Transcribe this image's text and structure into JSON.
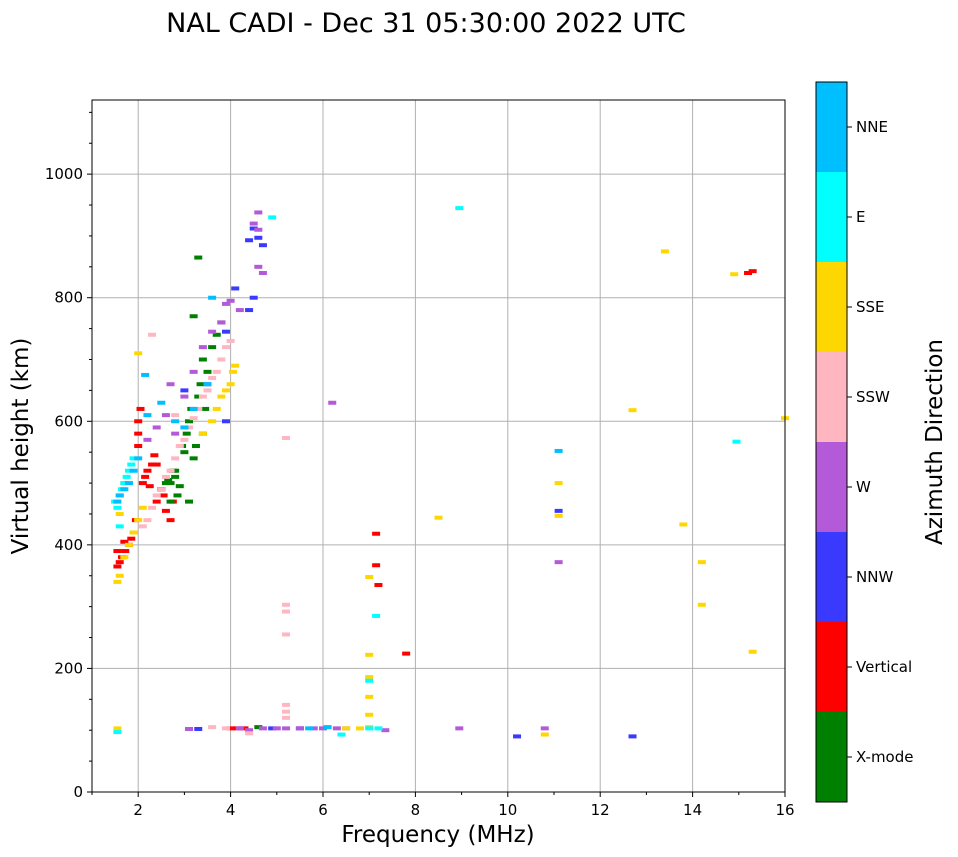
{
  "chart_data": {
    "type": "scatter",
    "title": "NAL CADI - Dec 31 05:30:00 2022 UTC",
    "xlabel": "Frequency (MHz)",
    "ylabel": "Virtual height (km)",
    "xlim": [
      1,
      16
    ],
    "ylim": [
      0,
      1120
    ],
    "xticks": [
      2,
      4,
      6,
      8,
      10,
      12,
      14,
      16
    ],
    "yticks": [
      0,
      200,
      400,
      600,
      800,
      1000
    ],
    "grid": true,
    "colorbar": {
      "label": "Azimuth Direction",
      "categories": [
        {
          "name": "X-mode",
          "color": "#008000"
        },
        {
          "name": "Vertical",
          "color": "#ff0000"
        },
        {
          "name": "NNW",
          "color": "#3a3aff"
        },
        {
          "name": "W",
          "color": "#b45ad8"
        },
        {
          "name": "SSW",
          "color": "#ffb6c1"
        },
        {
          "name": "SSE",
          "color": "#ffd700"
        },
        {
          "name": "E",
          "color": "#00ffff"
        },
        {
          "name": "NNE",
          "color": "#00bfff"
        }
      ]
    },
    "series": [
      {
        "name": "Vertical",
        "points": [
          [
            1.55,
            365
          ],
          [
            1.6,
            372
          ],
          [
            1.65,
            380
          ],
          [
            1.72,
            390
          ],
          [
            1.8,
            400
          ],
          [
            1.85,
            410
          ],
          [
            1.9,
            420
          ],
          [
            1.95,
            440
          ],
          [
            2.0,
            560
          ],
          [
            2.0,
            580
          ],
          [
            2.0,
            600
          ],
          [
            2.05,
            620
          ],
          [
            2.1,
            500
          ],
          [
            2.15,
            510
          ],
          [
            2.2,
            520
          ],
          [
            2.25,
            495
          ],
          [
            2.3,
            530
          ],
          [
            2.35,
            545
          ],
          [
            2.4,
            470
          ],
          [
            2.5,
            490
          ],
          [
            2.6,
            455
          ],
          [
            2.7,
            440
          ],
          [
            2.75,
            470
          ],
          [
            7.15,
            418
          ],
          [
            7.15,
            367
          ],
          [
            7.2,
            335
          ],
          [
            7.8,
            224
          ],
          [
            4.0,
            103
          ],
          [
            4.15,
            103
          ],
          [
            4.3,
            103
          ],
          [
            1.55,
            390
          ],
          [
            1.7,
            405
          ],
          [
            15.2,
            840
          ],
          [
            15.3,
            843
          ],
          [
            2.4,
            530
          ],
          [
            2.55,
            480
          ]
        ]
      },
      {
        "name": "X-mode",
        "points": [
          [
            2.5,
            490
          ],
          [
            2.6,
            500
          ],
          [
            2.65,
            505
          ],
          [
            2.7,
            470
          ],
          [
            2.75,
            520
          ],
          [
            2.8,
            510
          ],
          [
            2.85,
            480
          ],
          [
            2.9,
            495
          ],
          [
            2.95,
            560
          ],
          [
            3.0,
            550
          ],
          [
            3.05,
            580
          ],
          [
            3.1,
            600
          ],
          [
            3.15,
            620
          ],
          [
            3.2,
            540
          ],
          [
            3.25,
            560
          ],
          [
            3.3,
            640
          ],
          [
            3.35,
            660
          ],
          [
            3.4,
            700
          ],
          [
            3.45,
            620
          ],
          [
            3.5,
            680
          ],
          [
            3.6,
            720
          ],
          [
            3.7,
            740
          ],
          [
            3.8,
            760
          ],
          [
            3.3,
            865
          ],
          [
            3.2,
            770
          ],
          [
            2.8,
            520
          ],
          [
            3.1,
            470
          ],
          [
            3.4,
            580
          ],
          [
            4.6,
            105
          ],
          [
            2.7,
            500
          ]
        ]
      },
      {
        "name": "NNW",
        "points": [
          [
            4.4,
            893
          ],
          [
            4.5,
            912
          ],
          [
            4.6,
            897
          ],
          [
            4.7,
            885
          ],
          [
            4.1,
            815
          ],
          [
            4.4,
            780
          ],
          [
            3.9,
            745
          ],
          [
            4.5,
            800
          ],
          [
            3.5,
            660
          ],
          [
            11.1,
            455
          ],
          [
            10.2,
            90
          ],
          [
            12.7,
            90
          ],
          [
            4.9,
            103
          ],
          [
            5.5,
            103
          ],
          [
            3.3,
            102
          ],
          [
            3.0,
            650
          ],
          [
            3.9,
            600
          ]
        ]
      },
      {
        "name": "W",
        "points": [
          [
            4.6,
            938
          ],
          [
            4.6,
            910
          ],
          [
            4.5,
            920
          ],
          [
            4.6,
            850
          ],
          [
            4.7,
            840
          ],
          [
            4.2,
            780
          ],
          [
            4.0,
            795
          ],
          [
            3.9,
            790
          ],
          [
            3.8,
            760
          ],
          [
            3.6,
            745
          ],
          [
            3.4,
            720
          ],
          [
            3.2,
            680
          ],
          [
            3.0,
            640
          ],
          [
            2.6,
            610
          ],
          [
            2.4,
            590
          ],
          [
            2.2,
            570
          ],
          [
            6.2,
            630
          ],
          [
            8.95,
            103
          ],
          [
            10.8,
            103
          ],
          [
            11.1,
            372
          ],
          [
            4.2,
            103
          ],
          [
            4.4,
            100
          ],
          [
            4.7,
            103
          ],
          [
            5.0,
            103
          ],
          [
            5.2,
            103
          ],
          [
            5.5,
            103
          ],
          [
            5.8,
            103
          ],
          [
            6.0,
            103
          ],
          [
            6.3,
            103
          ],
          [
            6.5,
            103
          ],
          [
            7.35,
            100
          ],
          [
            3.1,
            102
          ],
          [
            2.7,
            660
          ],
          [
            2.8,
            580
          ]
        ]
      },
      {
        "name": "SSW",
        "points": [
          [
            2.1,
            430
          ],
          [
            2.2,
            440
          ],
          [
            2.3,
            460
          ],
          [
            2.4,
            480
          ],
          [
            2.5,
            490
          ],
          [
            2.6,
            510
          ],
          [
            2.7,
            520
          ],
          [
            2.8,
            540
          ],
          [
            2.9,
            560
          ],
          [
            3.0,
            570
          ],
          [
            3.1,
            590
          ],
          [
            3.2,
            605
          ],
          [
            3.3,
            620
          ],
          [
            3.4,
            640
          ],
          [
            3.5,
            650
          ],
          [
            3.6,
            670
          ],
          [
            3.7,
            680
          ],
          [
            3.8,
            700
          ],
          [
            3.9,
            720
          ],
          [
            4.0,
            730
          ],
          [
            5.2,
            573
          ],
          [
            5.2,
            303
          ],
          [
            5.2,
            292
          ],
          [
            5.2,
            255
          ],
          [
            5.2,
            141
          ],
          [
            5.2,
            130
          ],
          [
            5.2,
            120
          ],
          [
            3.6,
            105
          ],
          [
            4.4,
            95
          ],
          [
            3.9,
            103
          ],
          [
            2.3,
            740
          ],
          [
            2.8,
            610
          ],
          [
            1.9,
            420
          ]
        ]
      },
      {
        "name": "SSE",
        "points": [
          [
            1.55,
            340
          ],
          [
            1.6,
            350
          ],
          [
            1.7,
            380
          ],
          [
            1.8,
            400
          ],
          [
            1.9,
            420
          ],
          [
            2.0,
            440
          ],
          [
            2.1,
            460
          ],
          [
            4.0,
            660
          ],
          [
            4.05,
            680
          ],
          [
            4.1,
            690
          ],
          [
            3.9,
            650
          ],
          [
            3.8,
            640
          ],
          [
            3.7,
            620
          ],
          [
            3.6,
            600
          ],
          [
            3.4,
            580
          ],
          [
            7.0,
            348
          ],
          [
            7.0,
            222
          ],
          [
            7.0,
            186
          ],
          [
            7.0,
            154
          ],
          [
            7.0,
            125
          ],
          [
            7.0,
            105
          ],
          [
            8.5,
            444
          ],
          [
            11.1,
            500
          ],
          [
            11.1,
            447
          ],
          [
            12.7,
            618
          ],
          [
            13.4,
            875
          ],
          [
            13.8,
            433
          ],
          [
            14.2,
            372
          ],
          [
            14.2,
            303
          ],
          [
            14.9,
            838
          ],
          [
            15.3,
            227
          ],
          [
            16.0,
            605
          ],
          [
            10.8,
            93
          ],
          [
            1.55,
            103
          ],
          [
            6.5,
            103
          ],
          [
            6.8,
            103
          ],
          [
            2.0,
            710
          ],
          [
            1.6,
            450
          ],
          [
            1.7,
            500
          ]
        ]
      },
      {
        "name": "E",
        "points": [
          [
            1.55,
            460
          ],
          [
            1.6,
            480
          ],
          [
            1.65,
            490
          ],
          [
            1.7,
            500
          ],
          [
            1.75,
            510
          ],
          [
            1.8,
            520
          ],
          [
            1.85,
            530
          ],
          [
            1.9,
            540
          ],
          [
            1.5,
            470
          ],
          [
            1.6,
            430
          ],
          [
            4.9,
            930
          ],
          [
            8.95,
            945
          ],
          [
            7.15,
            285
          ],
          [
            7.0,
            180
          ],
          [
            6.4,
            93
          ],
          [
            14.95,
            567
          ],
          [
            1.55,
            97
          ],
          [
            7.0,
            103
          ],
          [
            7.2,
            103
          ]
        ]
      },
      {
        "name": "NNE",
        "points": [
          [
            1.6,
            480
          ],
          [
            1.7,
            490
          ],
          [
            1.8,
            500
          ],
          [
            1.9,
            520
          ],
          [
            2.0,
            540
          ],
          [
            2.2,
            610
          ],
          [
            2.5,
            630
          ],
          [
            2.8,
            600
          ],
          [
            3.0,
            590
          ],
          [
            3.2,
            620
          ],
          [
            3.5,
            660
          ],
          [
            3.6,
            800
          ],
          [
            11.1,
            552
          ],
          [
            6.1,
            105
          ],
          [
            5.7,
            103
          ],
          [
            2.15,
            675
          ],
          [
            1.55,
            470
          ]
        ]
      }
    ]
  }
}
